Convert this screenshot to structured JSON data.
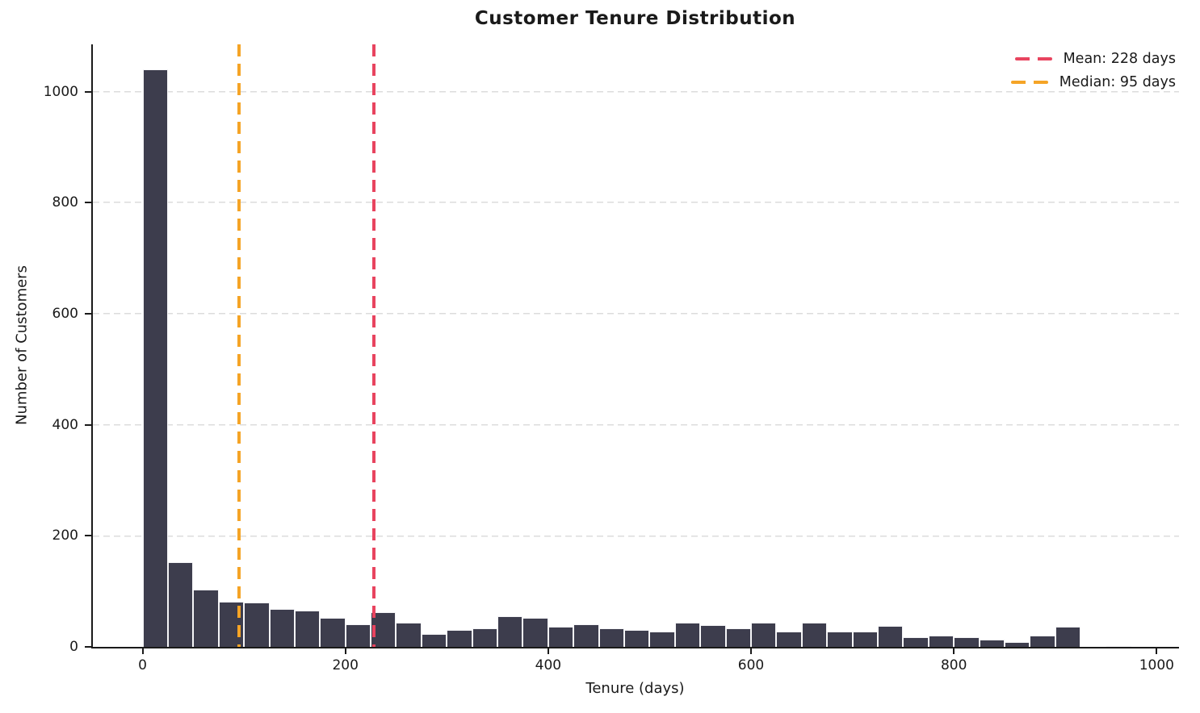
{
  "chart_data": {
    "type": "bar",
    "subtype": "histogram",
    "title": "Customer Tenure Distribution",
    "xlabel": "Tenure (days)",
    "ylabel": "Number of Customers",
    "bin_start": 0,
    "bin_width": 25,
    "values": [
      1040,
      152,
      103,
      81,
      80,
      68,
      66,
      53,
      40,
      62,
      44,
      23,
      31,
      33,
      55,
      53,
      37,
      40,
      33,
      31,
      27,
      44,
      39,
      33,
      44,
      28,
      44,
      28,
      27,
      38,
      18,
      21,
      17,
      13,
      9,
      21,
      36,
      0,
      2,
      0
    ],
    "x_ticks": [
      0,
      200,
      400,
      600,
      800,
      1000
    ],
    "y_ticks": [
      0,
      200,
      400,
      600,
      800,
      1000
    ],
    "xlim": [
      -49,
      1022
    ],
    "ylim": [
      0,
      1085
    ],
    "grid": "horizontal-dashed",
    "annotations": [
      {
        "kind": "vline",
        "x": 228,
        "color": "#E8445F",
        "label": "Mean: 228 days"
      },
      {
        "kind": "vline",
        "x": 95,
        "color": "#F5A426",
        "label": "Median: 95 days"
      }
    ],
    "legend": {
      "position": "top-right",
      "entries": [
        {
          "label": "Mean: 228 days",
          "color": "#E8445F"
        },
        {
          "label": "Median: 95 days",
          "color": "#F5A426"
        }
      ]
    },
    "colors": {
      "bar": "#3D3D4D",
      "bar_edge": "#F5F5F7",
      "grid": "#DCDCDC",
      "axis": "#1A1A1A",
      "text": "#1A1A1A"
    }
  }
}
